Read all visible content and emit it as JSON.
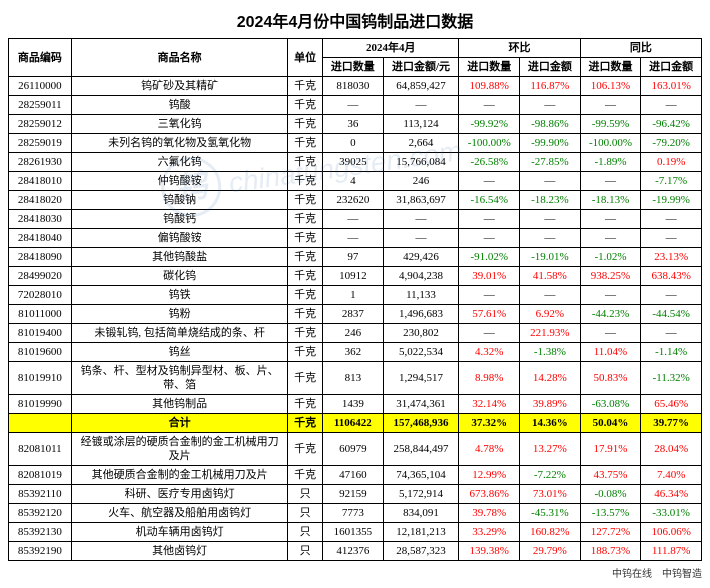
{
  "title": "2024年4月份中国钨制品进口数据",
  "headers": {
    "code": "商品编码",
    "name": "商品名称",
    "unit": "单位",
    "period": "2024年4月",
    "mom": "环比",
    "yoy": "同比",
    "qty": "进口数量",
    "val": "进口金额/元",
    "val2": "进口金额"
  },
  "footer_left": "中钨在线",
  "footer_right": "中钨智造",
  "watermark": "chinatungsten.com",
  "pos_color": "#ff0000",
  "neg_color": "#008000",
  "hl_color": "#ffff00",
  "rows": [
    {
      "code": "26110000",
      "name": "钨矿砂及其精矿",
      "unit": "千克",
      "qty": "818030",
      "val": "64,859,427",
      "mqty": "109.88%",
      "mval": "116.87%",
      "yqty": "106.13%",
      "yval": "163.01%",
      "hl": false
    },
    {
      "code": "28259011",
      "name": "钨酸",
      "unit": "千克",
      "qty": "—",
      "val": "—",
      "mqty": "—",
      "mval": "—",
      "yqty": "—",
      "yval": "—",
      "hl": false
    },
    {
      "code": "28259012",
      "name": "三氧化钨",
      "unit": "千克",
      "qty": "36",
      "val": "113,124",
      "mqty": "-99.92%",
      "mval": "-98.86%",
      "yqty": "-99.59%",
      "yval": "-96.42%",
      "hl": false
    },
    {
      "code": "28259019",
      "name": "未列名钨的氧化物及氢氧化物",
      "unit": "千克",
      "qty": "0",
      "val": "2,664",
      "mqty": "-100.00%",
      "mval": "-99.90%",
      "yqty": "-100.00%",
      "yval": "-79.20%",
      "hl": false
    },
    {
      "code": "28261930",
      "name": "六氟化钨",
      "unit": "千克",
      "qty": "39025",
      "val": "15,766,084",
      "mqty": "-26.58%",
      "mval": "-27.85%",
      "yqty": "-1.89%",
      "yval": "0.19%",
      "hl": false
    },
    {
      "code": "28418010",
      "name": "仲钨酸铵",
      "unit": "千克",
      "qty": "4",
      "val": "246",
      "mqty": "—",
      "mval": "—",
      "yqty": "—",
      "yval": "-7.17%",
      "hl": false
    },
    {
      "code": "28418020",
      "name": "钨酸钠",
      "unit": "千克",
      "qty": "232620",
      "val": "31,863,697",
      "mqty": "-16.54%",
      "mval": "-18.23%",
      "yqty": "-18.13%",
      "yval": "-19.99%",
      "hl": false
    },
    {
      "code": "28418030",
      "name": "钨酸钙",
      "unit": "千克",
      "qty": "—",
      "val": "—",
      "mqty": "—",
      "mval": "—",
      "yqty": "—",
      "yval": "—",
      "hl": false
    },
    {
      "code": "28418040",
      "name": "偏钨酸铵",
      "unit": "千克",
      "qty": "—",
      "val": "—",
      "mqty": "—",
      "mval": "—",
      "yqty": "—",
      "yval": "—",
      "hl": false
    },
    {
      "code": "28418090",
      "name": "其他钨酸盐",
      "unit": "千克",
      "qty": "97",
      "val": "429,426",
      "mqty": "-91.02%",
      "mval": "-19.01%",
      "yqty": "-1.02%",
      "yval": "23.13%",
      "hl": false
    },
    {
      "code": "28499020",
      "name": "碳化钨",
      "unit": "千克",
      "qty": "10912",
      "val": "4,904,238",
      "mqty": "39.01%",
      "mval": "41.58%",
      "yqty": "938.25%",
      "yval": "638.43%",
      "hl": false
    },
    {
      "code": "72028010",
      "name": "钨铁",
      "unit": "千克",
      "qty": "1",
      "val": "11,133",
      "mqty": "—",
      "mval": "—",
      "yqty": "—",
      "yval": "—",
      "hl": false
    },
    {
      "code": "81011000",
      "name": "钨粉",
      "unit": "千克",
      "qty": "2837",
      "val": "1,496,683",
      "mqty": "57.61%",
      "mval": "6.92%",
      "yqty": "-44.23%",
      "yval": "-44.54%",
      "hl": false
    },
    {
      "code": "81019400",
      "name": "未锻轧钨, 包括简单烧结成的条、杆",
      "unit": "千克",
      "qty": "246",
      "val": "230,802",
      "mqty": "—",
      "mval": "221.93%",
      "yqty": "—",
      "yval": "—",
      "hl": false
    },
    {
      "code": "81019600",
      "name": "钨丝",
      "unit": "千克",
      "qty": "362",
      "val": "5,022,534",
      "mqty": "4.32%",
      "mval": "-1.38%",
      "yqty": "11.04%",
      "yval": "-1.14%",
      "hl": false
    },
    {
      "code": "81019910",
      "name": "钨条、杆、型材及钨制异型材、板、片、带、箔",
      "unit": "千克",
      "qty": "813",
      "val": "1,294,517",
      "mqty": "8.98%",
      "mval": "14.28%",
      "yqty": "50.83%",
      "yval": "-11.32%",
      "hl": false
    },
    {
      "code": "81019990",
      "name": "其他钨制品",
      "unit": "千克",
      "qty": "1439",
      "val": "31,474,361",
      "mqty": "32.14%",
      "mval": "39.89%",
      "yqty": "-63.08%",
      "yval": "65.46%",
      "hl": false
    },
    {
      "code": "",
      "name": "合计",
      "unit": "千克",
      "qty": "1106422",
      "val": "157,468,936",
      "mqty": "37.32%",
      "mval": "14.36%",
      "yqty": "50.04%",
      "yval": "39.77%",
      "hl": true
    },
    {
      "code": "82081011",
      "name": "经镀或涂层的硬质合金制的金工机械用刀及片",
      "unit": "千克",
      "qty": "60979",
      "val": "258,844,497",
      "mqty": "4.78%",
      "mval": "13.27%",
      "yqty": "17.91%",
      "yval": "28.04%",
      "hl": false
    },
    {
      "code": "82081019",
      "name": "其他硬质合金制的金工机械用刀及片",
      "unit": "千克",
      "qty": "47160",
      "val": "74,365,104",
      "mqty": "12.99%",
      "mval": "-7.22%",
      "yqty": "43.75%",
      "yval": "7.40%",
      "hl": false
    },
    {
      "code": "85392110",
      "name": "科研、医疗专用卤钨灯",
      "unit": "只",
      "qty": "92159",
      "val": "5,172,914",
      "mqty": "673.86%",
      "mval": "73.01%",
      "yqty": "-0.08%",
      "yval": "46.34%",
      "hl": false
    },
    {
      "code": "85392120",
      "name": "火车、航空器及船舶用卤钨灯",
      "unit": "只",
      "qty": "7773",
      "val": "834,091",
      "mqty": "39.78%",
      "mval": "-45.31%",
      "yqty": "-13.57%",
      "yval": "-33.01%",
      "hl": false
    },
    {
      "code": "85392130",
      "name": "机动车辆用卤钨灯",
      "unit": "只",
      "qty": "1601355",
      "val": "12,181,213",
      "mqty": "33.29%",
      "mval": "160.82%",
      "yqty": "127.72%",
      "yval": "106.06%",
      "hl": false
    },
    {
      "code": "85392190",
      "name": "其他卤钨灯",
      "unit": "只",
      "qty": "412376",
      "val": "28,587,323",
      "mqty": "139.38%",
      "mval": "29.79%",
      "yqty": "188.73%",
      "yval": "111.87%",
      "hl": false
    }
  ]
}
